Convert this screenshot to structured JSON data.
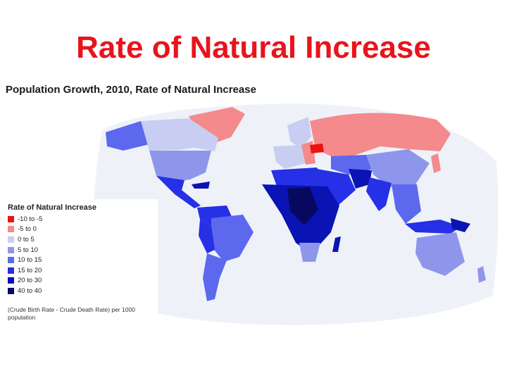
{
  "slide": {
    "title": "Rate of Natural Increase"
  },
  "map": {
    "heading": "Population Growth, 2010, Rate of Natural Increase",
    "ocean_color": "#eef2f8"
  },
  "legend": {
    "title": "Rate of Natural Increase",
    "items": [
      {
        "label": "-10 to -5",
        "color": "#ee1111"
      },
      {
        "label": "-5 to 0",
        "color": "#f48a8c"
      },
      {
        "label": "0 to 5",
        "color": "#c8cef2"
      },
      {
        "label": "5 to 10",
        "color": "#8e96ec"
      },
      {
        "label": "10 to 15",
        "color": "#5c68ee"
      },
      {
        "label": "15 to 20",
        "color": "#2630e6"
      },
      {
        "label": "20 to 30",
        "color": "#0a13b3"
      },
      {
        "label": "40 to 40",
        "color": "#06095e"
      }
    ],
    "note": "(Crude Birth Rate - Crude Death Rate) per 1000 population"
  }
}
